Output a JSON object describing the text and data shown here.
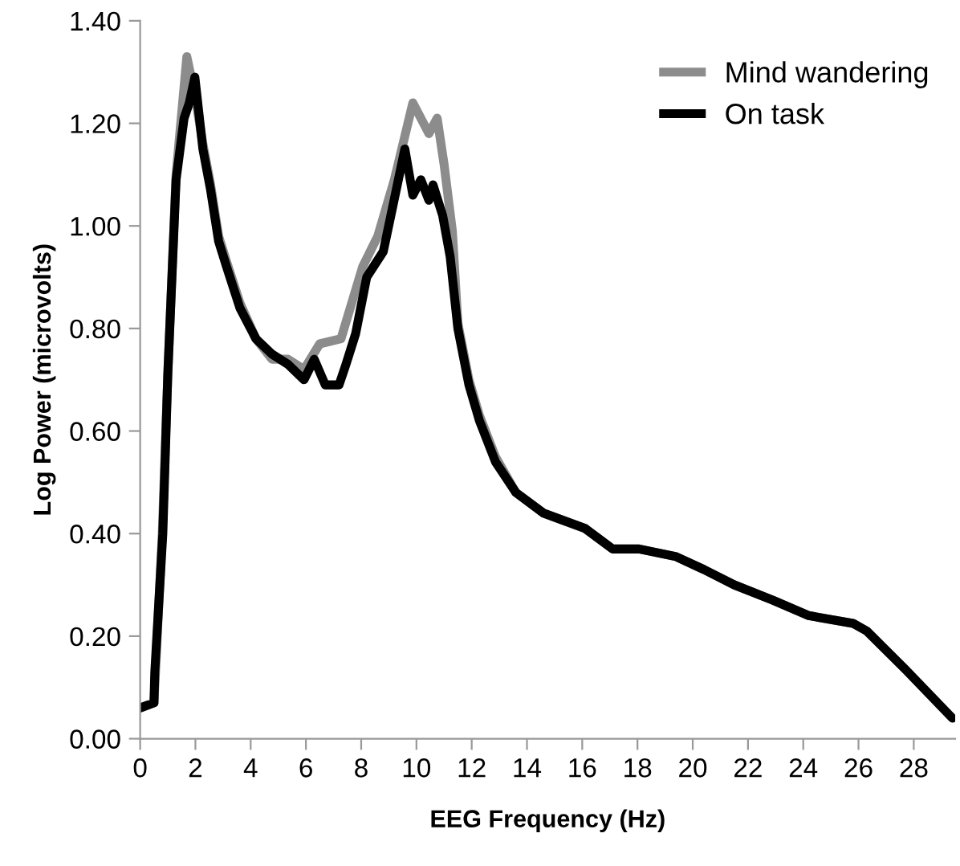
{
  "chart_data": {
    "type": "line",
    "xlabel": "EEG Frequency (Hz)",
    "ylabel": "Log Power (microvolts)",
    "xlim": [
      0,
      29.5
    ],
    "ylim": [
      0,
      1.4
    ],
    "xticks": [
      0,
      2,
      4,
      6,
      8,
      10,
      12,
      14,
      16,
      18,
      20,
      22,
      24,
      26,
      28
    ],
    "yticks": [
      {
        "value": 0,
        "label": "0.00"
      },
      {
        "value": 0.2,
        "label": "0.20"
      },
      {
        "value": 0.4,
        "label": "0.40"
      },
      {
        "value": 0.6,
        "label": "0.60"
      },
      {
        "value": 0.8,
        "label": "0.80"
      },
      {
        "value": 1.0,
        "label": "1.00"
      },
      {
        "value": 1.2,
        "label": "1.20"
      },
      {
        "value": 1.4,
        "label": "1.40"
      }
    ],
    "grid": false,
    "legend": "top right",
    "marker": "none",
    "line_style": "solid",
    "series": [
      {
        "name": "Mind wandering",
        "color": "#8c8c8c",
        "x": [
          0,
          0.5,
          0.8,
          1.0,
          1.3,
          1.69,
          2.0,
          2.27,
          2.55,
          2.84,
          3.13,
          3.61,
          4.19,
          4.77,
          5.35,
          5.93,
          6.5,
          7.27,
          8.05,
          8.6,
          9.2,
          9.87,
          10.45,
          10.75,
          11.0,
          11.3,
          11.5,
          11.9,
          12.28,
          12.86,
          13.6,
          14.6,
          16.1,
          17.1,
          18.06,
          19.4,
          20.4,
          21.5,
          22.9,
          24.2,
          25.8,
          26.3
        ],
        "values": [
          0.06,
          0.07,
          0.4,
          0.71,
          1.1,
          1.33,
          1.25,
          1.16,
          1.08,
          0.98,
          0.93,
          0.85,
          0.78,
          0.74,
          0.74,
          0.72,
          0.77,
          0.78,
          0.92,
          0.98,
          1.09,
          1.24,
          1.18,
          1.21,
          1.12,
          0.99,
          0.81,
          0.7,
          0.63,
          0.55,
          0.48,
          0.44,
          0.41,
          0.37,
          0.37,
          0.355,
          0.33,
          0.3,
          0.27,
          0.24,
          0.225,
          0.21
        ]
      },
      {
        "name": "On task",
        "color": "#000000",
        "x": [
          0,
          0.5,
          0.53,
          0.82,
          1.0,
          1.3,
          1.59,
          1.78,
          1.98,
          2.27,
          2.55,
          2.84,
          3.13,
          3.61,
          4.19,
          4.77,
          5.35,
          5.93,
          6.3,
          6.7,
          7.2,
          7.45,
          7.8,
          8.2,
          8.8,
          9.58,
          9.87,
          10.16,
          10.45,
          10.6,
          10.95,
          11.22,
          11.5,
          11.9,
          12.28,
          12.86,
          13.6,
          14.6,
          16.1,
          17.1,
          18.06,
          19.4,
          20.4,
          21.5,
          22.9,
          24.2,
          25.8,
          26.3,
          27.7,
          29.4
        ],
        "values": [
          0.06,
          0.07,
          0.13,
          0.4,
          0.71,
          1.09,
          1.21,
          1.24,
          1.29,
          1.15,
          1.07,
          0.97,
          0.92,
          0.84,
          0.78,
          0.75,
          0.73,
          0.7,
          0.74,
          0.69,
          0.69,
          0.73,
          0.79,
          0.9,
          0.95,
          1.15,
          1.06,
          1.09,
          1.05,
          1.08,
          1.02,
          0.94,
          0.8,
          0.69,
          0.62,
          0.54,
          0.48,
          0.44,
          0.41,
          0.37,
          0.37,
          0.355,
          0.33,
          0.3,
          0.27,
          0.24,
          0.225,
          0.21,
          0.135,
          0.04
        ]
      }
    ]
  }
}
